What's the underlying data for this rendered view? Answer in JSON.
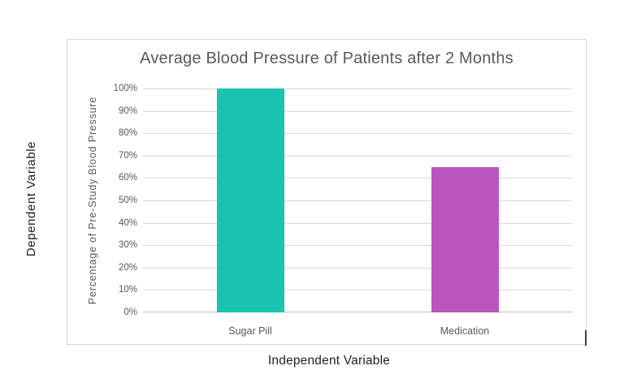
{
  "outer_labels": {
    "dependent": "Dependent Variable",
    "independent": "Independent Variable"
  },
  "chart_data": {
    "type": "bar",
    "title": "Average Blood Pressure of Patients after 2 Months",
    "categories": [
      "Sugar Pill",
      "Medication"
    ],
    "values": [
      100,
      65
    ],
    "bar_colors": [
      "#1bc3b1",
      "#ba55bf"
    ],
    "xlabel": "Independent Variable",
    "ylabel": "Percentage of Pre-Study Blood Pressure",
    "ylim": [
      0,
      100
    ],
    "ytick_values": [
      0,
      10,
      20,
      30,
      40,
      50,
      60,
      70,
      80,
      90,
      100
    ],
    "ytick_labels": [
      "0%",
      "10%",
      "20%",
      "30%",
      "40%",
      "50%",
      "60%",
      "70%",
      "80%",
      "90%",
      "100%"
    ],
    "grid": true,
    "legend": false,
    "colors": {
      "title_text": "#595959",
      "tick_text": "#595959",
      "outer_label_text": "#1f1f1f",
      "gridline": "#d9d9d9",
      "axis_line": "#bfbfbf",
      "panel_border": "#d9d9d9",
      "background": "#ffffff"
    }
  }
}
